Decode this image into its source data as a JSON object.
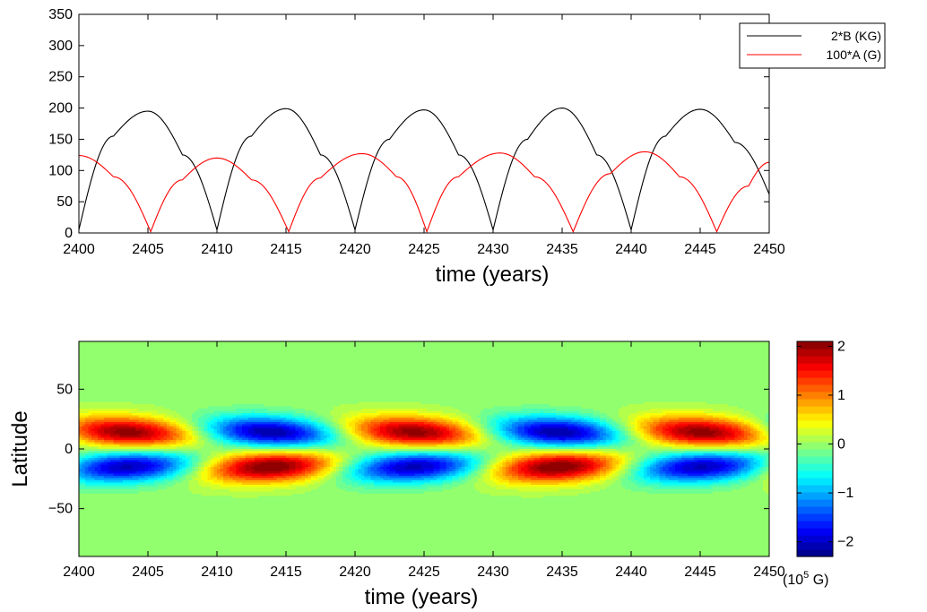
{
  "chart_data": [
    {
      "type": "line",
      "xlabel": "time (years)",
      "ylabel": "",
      "xlim": [
        2400,
        2450
      ],
      "ylim": [
        0,
        350
      ],
      "xticks": [
        2400,
        2405,
        2410,
        2415,
        2420,
        2425,
        2430,
        2435,
        2440,
        2445,
        2450
      ],
      "yticks": [
        0,
        50,
        100,
        150,
        200,
        250,
        300,
        350
      ],
      "legend_position": "top-right",
      "series": [
        {
          "name": "2*B (KG)",
          "color": "#000000",
          "x": [
            2400.0,
            2402.5,
            2405.0,
            2407.5,
            2410.0,
            2412.5,
            2415.0,
            2417.5,
            2420.0,
            2422.5,
            2425.0,
            2427.5,
            2430.0,
            2432.5,
            2435.0,
            2437.5,
            2440.0,
            2442.5,
            2445.0,
            2447.5,
            2450.0
          ],
          "y": [
            5,
            155,
            195,
            125,
            5,
            155,
            199,
            125,
            5,
            150,
            197,
            125,
            5,
            150,
            200,
            125,
            5,
            155,
            198,
            145,
            62
          ]
        },
        {
          "name": "100*A (G)",
          "color": "#ff0000",
          "x": [
            2400.0,
            2402.5,
            2405.2,
            2407.5,
            2410.0,
            2412.5,
            2415.2,
            2417.5,
            2420.5,
            2423.0,
            2425.2,
            2427.5,
            2430.5,
            2433.0,
            2435.8,
            2438.5,
            2441.0,
            2443.5,
            2446.2,
            2448.5,
            2450.0
          ],
          "y": [
            124,
            90,
            2,
            85,
            120,
            85,
            2,
            88,
            127,
            90,
            2,
            90,
            128,
            90,
            2,
            95,
            130,
            90,
            2,
            75,
            113
          ]
        }
      ]
    },
    {
      "type": "heatmap",
      "xlabel": "time (years)",
      "ylabel": "Latitude",
      "xlim": [
        2400,
        2450
      ],
      "ylim": [
        -90,
        90
      ],
      "xticks": [
        2400,
        2405,
        2410,
        2415,
        2420,
        2425,
        2430,
        2435,
        2440,
        2445,
        2450
      ],
      "yticks": [
        50,
        0,
        -50
      ],
      "colormap": "jet",
      "colorbar": {
        "range": [
          -2.3,
          2.1
        ],
        "ticks": [
          2,
          1,
          0,
          -1,
          -2
        ],
        "tick_labels": [
          "2",
          "1",
          "0",
          "−1",
          "−2"
        ],
        "unit_label": "(10",
        "unit_exponent": "5",
        "unit_suffix": " G)"
      },
      "cycle": {
        "period_years": 20.8,
        "peak_value": 2.1,
        "north_lobe_latitude": 14,
        "south_lobe_latitude": -15,
        "northern_max_times": [
          2403.5,
          2424.2,
          2445.0
        ],
        "northern_min_times": [
          2413.8,
          2434.5
        ],
        "southern_max_times": [
          2413.8,
          2434.5
        ],
        "southern_min_times": [
          2403.5,
          2424.2,
          2445.0
        ]
      }
    }
  ]
}
